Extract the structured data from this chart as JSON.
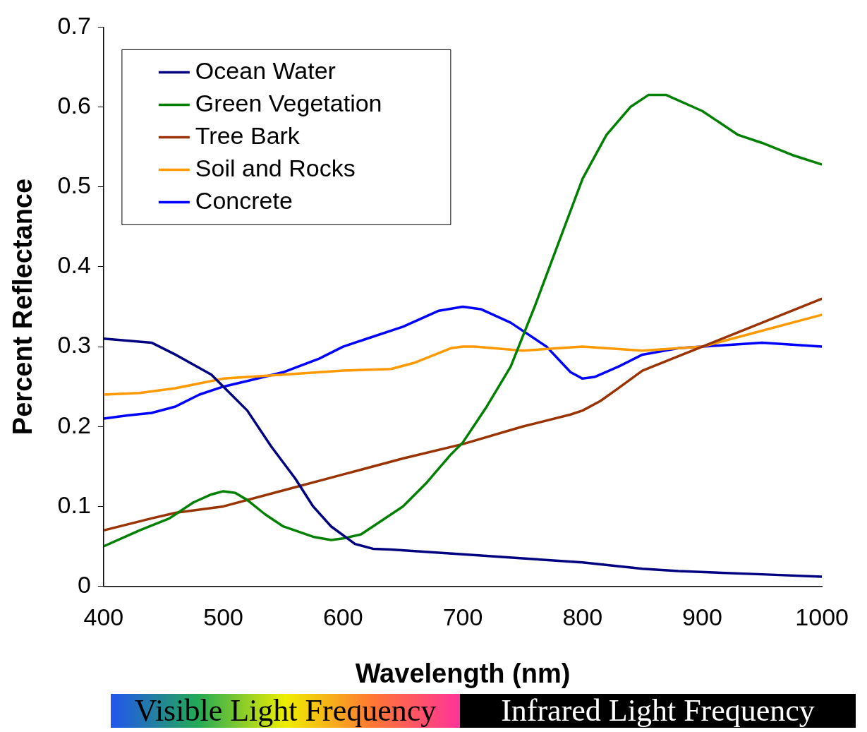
{
  "chart_data": {
    "type": "line",
    "xlabel": "Wavelength (nm)",
    "ylabel": "Percent Reflectance",
    "xlim": [
      400,
      1000
    ],
    "xticks": [
      400,
      500,
      600,
      700,
      800,
      900,
      1000
    ],
    "ylim": [
      0,
      0.7
    ],
    "yticks": [
      0,
      0.1,
      0.2,
      0.3,
      0.4,
      0.5,
      0.6,
      0.7
    ],
    "grid": false,
    "legend": "top left",
    "marker": "none",
    "line_style": "solid",
    "annotations": [
      "Visible Light Frequency",
      "Infrared Light Frequency"
    ],
    "series": [
      {
        "name": "Ocean Water",
        "color": "#000080",
        "x": [
          400,
          440,
          460,
          490,
          500,
          520,
          540,
          560,
          575,
          590,
          610,
          625,
          640,
          700,
          750,
          800,
          850,
          880,
          950,
          1000
        ],
        "values": [
          0.31,
          0.305,
          0.29,
          0.265,
          0.25,
          0.22,
          0.175,
          0.135,
          0.1,
          0.075,
          0.053,
          0.047,
          0.046,
          0.04,
          0.035,
          0.03,
          0.022,
          0.019,
          0.015,
          0.012
        ]
      },
      {
        "name": "Green Vegetation",
        "color": "#008000",
        "x": [
          400,
          430,
          455,
          475,
          490,
          500,
          510,
          520,
          535,
          550,
          575,
          590,
          600,
          615,
          625,
          650,
          670,
          690,
          700,
          720,
          740,
          760,
          780,
          800,
          820,
          840,
          855,
          870,
          900,
          930,
          950,
          975,
          1000
        ],
        "values": [
          0.05,
          0.07,
          0.085,
          0.105,
          0.115,
          0.119,
          0.117,
          0.108,
          0.09,
          0.075,
          0.062,
          0.058,
          0.06,
          0.065,
          0.075,
          0.1,
          0.13,
          0.165,
          0.18,
          0.225,
          0.275,
          0.35,
          0.43,
          0.51,
          0.565,
          0.6,
          0.615,
          0.615,
          0.595,
          0.565,
          0.555,
          0.54,
          0.528
        ]
      },
      {
        "name": "Tree Bark",
        "color": "#993300",
        "x": [
          400,
          440,
          460,
          500,
          550,
          600,
          650,
          700,
          750,
          790,
          800,
          815,
          830,
          850,
          900,
          950,
          1000
        ],
        "values": [
          0.07,
          0.085,
          0.092,
          0.1,
          0.12,
          0.14,
          0.16,
          0.178,
          0.2,
          0.215,
          0.22,
          0.232,
          0.248,
          0.27,
          0.3,
          0.33,
          0.36
        ]
      },
      {
        "name": "Soil and Rocks",
        "color": "#ff9900",
        "x": [
          400,
          430,
          460,
          500,
          550,
          600,
          640,
          660,
          690,
          700,
          710,
          750,
          800,
          850,
          900,
          950,
          1000
        ],
        "values": [
          0.24,
          0.242,
          0.248,
          0.26,
          0.265,
          0.27,
          0.272,
          0.28,
          0.298,
          0.3,
          0.3,
          0.295,
          0.3,
          0.295,
          0.3,
          0.32,
          0.34
        ]
      },
      {
        "name": "Concrete",
        "color": "#0000ff",
        "x": [
          400,
          420,
          440,
          460,
          480,
          500,
          520,
          550,
          580,
          600,
          620,
          650,
          680,
          700,
          715,
          740,
          770,
          790,
          800,
          810,
          830,
          850,
          880,
          900,
          950,
          1000
        ],
        "values": [
          0.21,
          0.214,
          0.217,
          0.225,
          0.24,
          0.25,
          0.257,
          0.268,
          0.285,
          0.3,
          0.31,
          0.325,
          0.345,
          0.35,
          0.347,
          0.33,
          0.3,
          0.268,
          0.26,
          0.262,
          0.275,
          0.29,
          0.298,
          0.3,
          0.305,
          0.3
        ]
      }
    ]
  }
}
